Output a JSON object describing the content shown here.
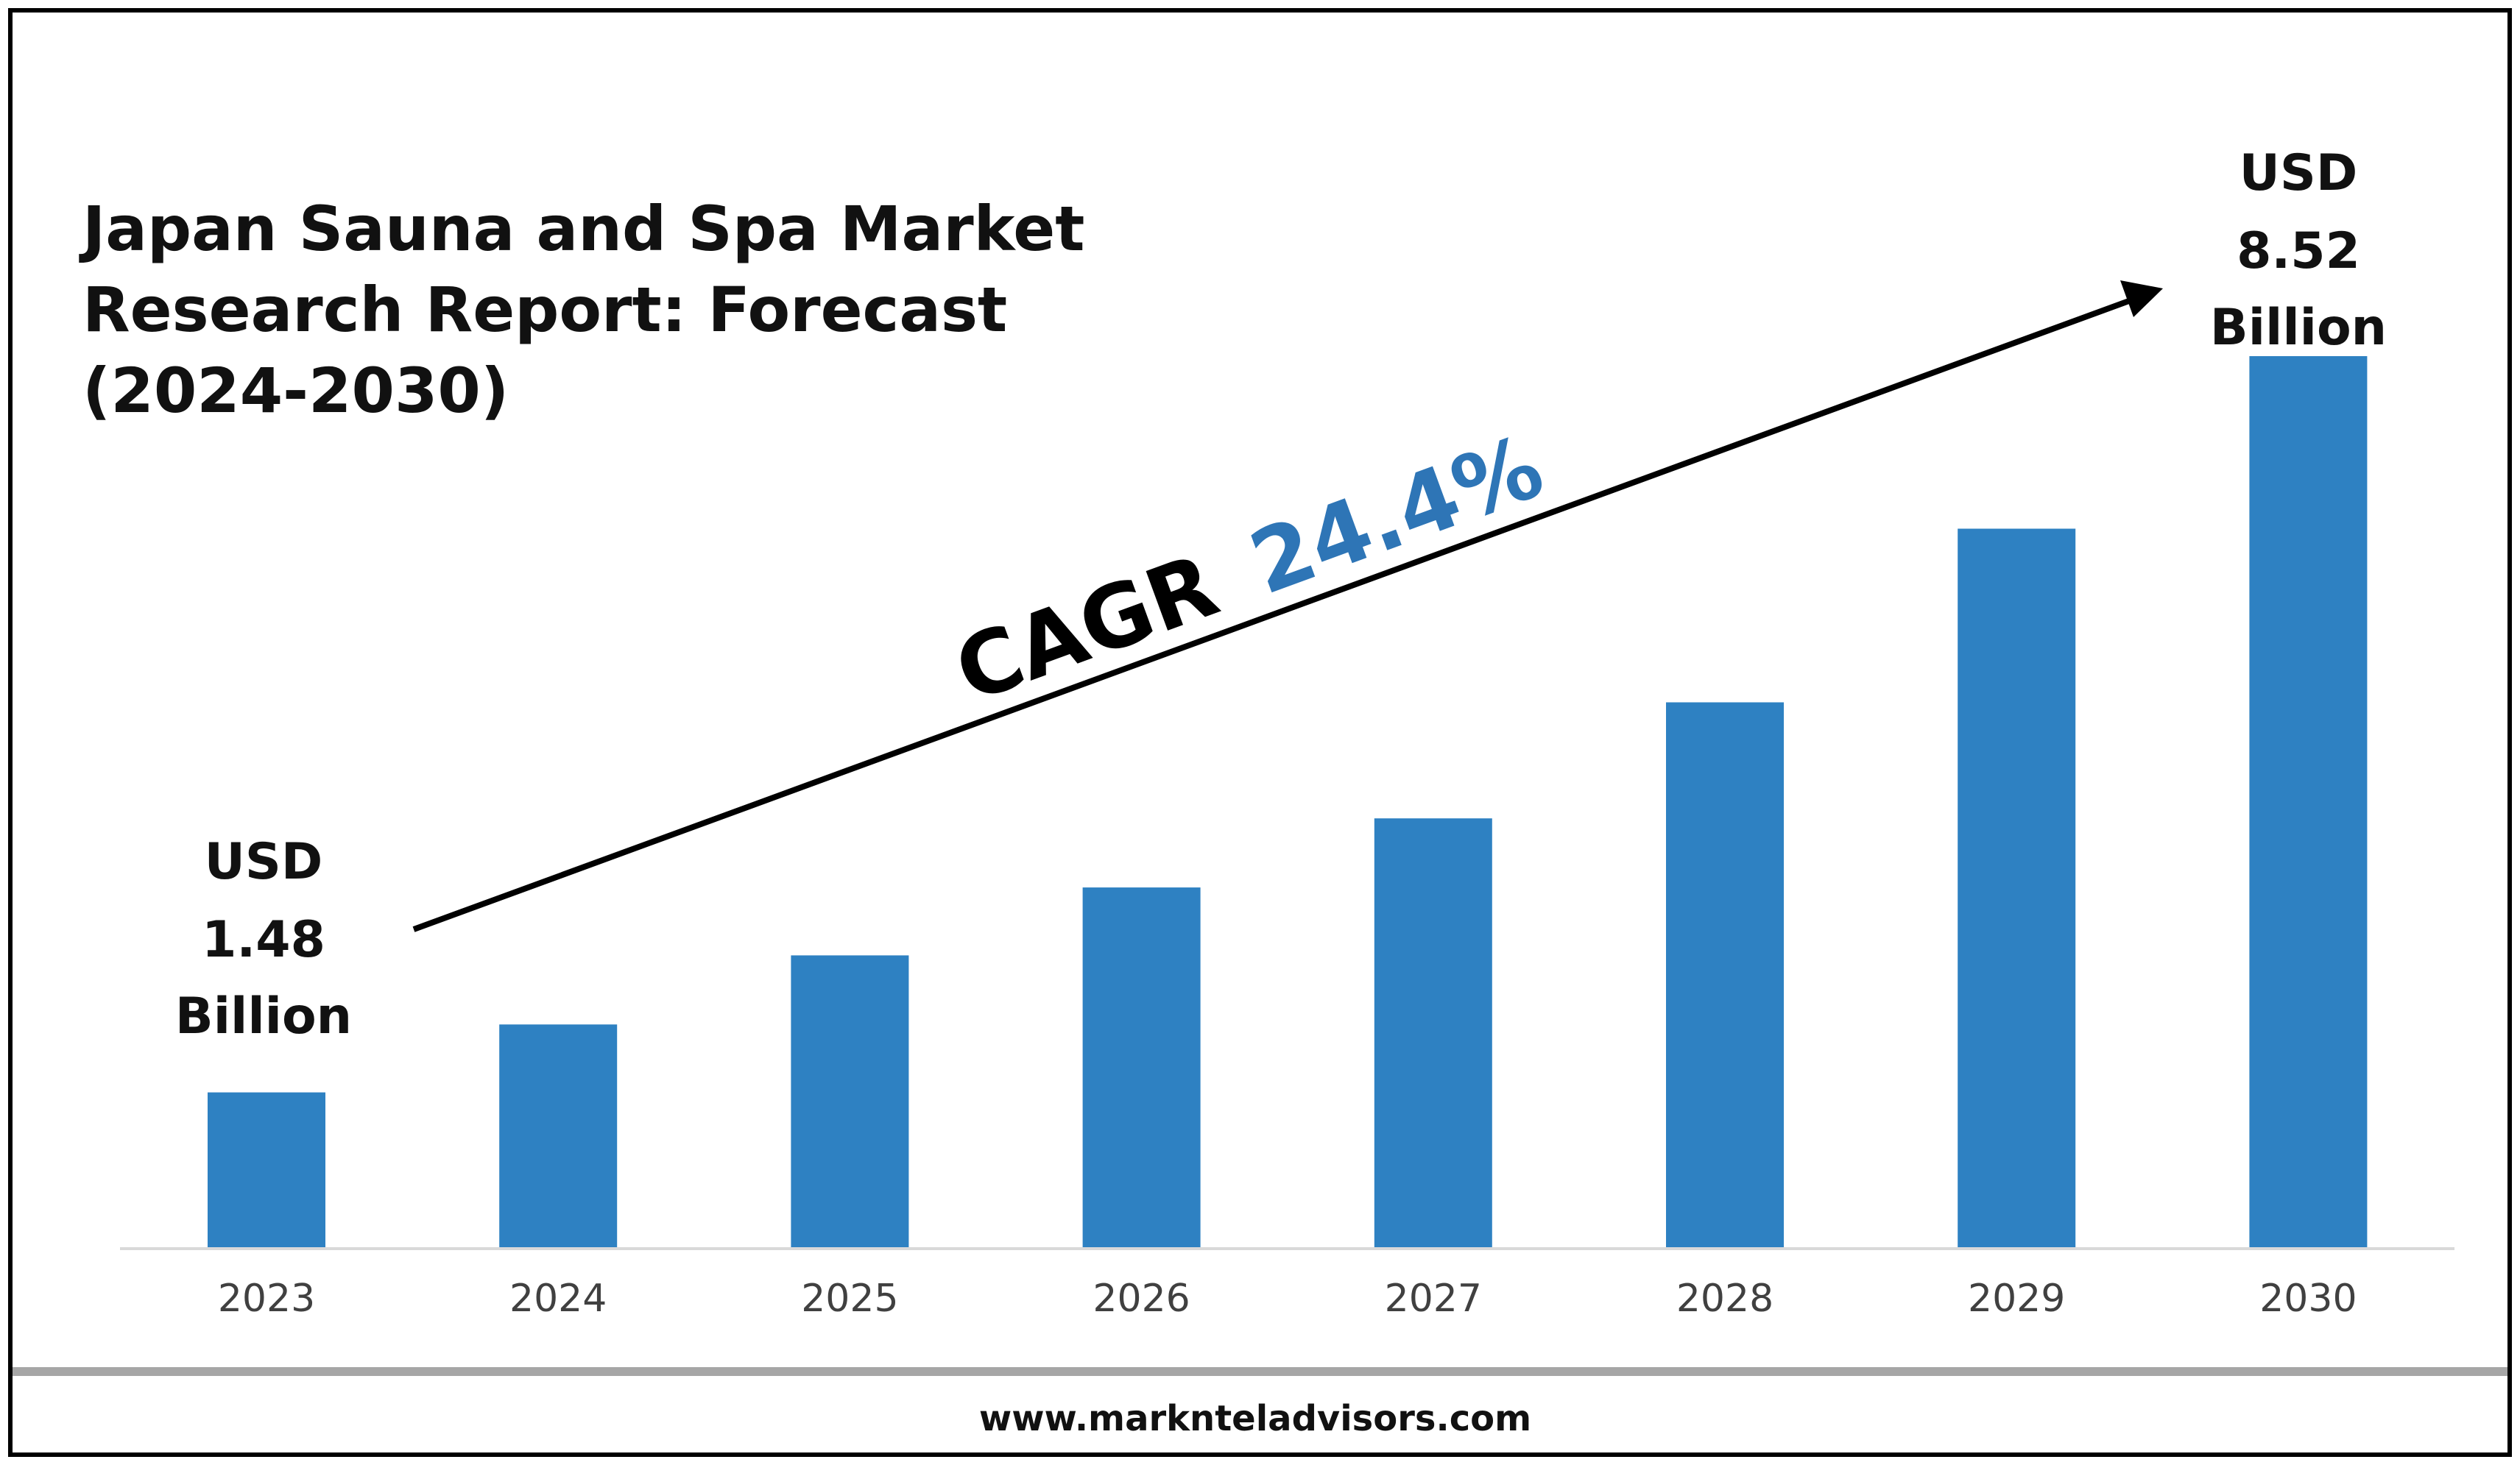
{
  "colors": {
    "bar": "#2e81c2",
    "cagr_value": "#2e75b6",
    "frame": "#000000",
    "axis": "#d9d9d9"
  },
  "chart_data": {
    "type": "bar",
    "title": "Japan Sauna and Spa Market Research Report: Forecast (2024-2030)",
    "title_lines": [
      "Japan Sauna and Spa Market",
      "Research Report: Forecast",
      "(2024-2030)"
    ],
    "categories": [
      "2023",
      "2024",
      "2025",
      "2026",
      "2027",
      "2028",
      "2029",
      "2030"
    ],
    "values": [
      1.48,
      2.13,
      2.79,
      3.44,
      4.1,
      5.21,
      6.87,
      8.52
    ],
    "unit": "USD Billion",
    "ylim": [
      0,
      8.52
    ],
    "grid": false,
    "annotations": {
      "start": {
        "lines": [
          "USD",
          "1.48",
          "Billion"
        ]
      },
      "end": {
        "lines": [
          "USD",
          "8.52",
          "Billion"
        ]
      },
      "cagr_label": "CAGR",
      "cagr_value": "24.4%"
    }
  },
  "footer": {
    "website": "www.marknteladvisors.com"
  }
}
